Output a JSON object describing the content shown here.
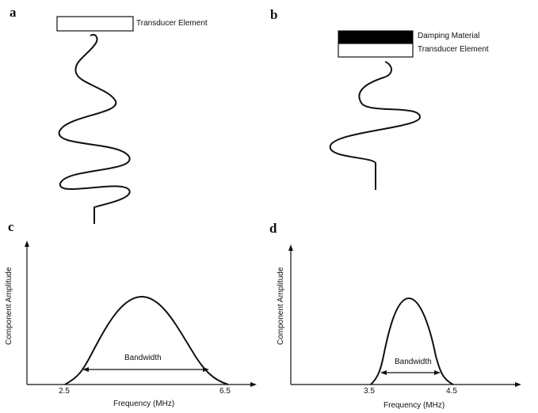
{
  "panels": {
    "a": {
      "letter": "a",
      "transducer_label": "Transducer Element"
    },
    "b": {
      "letter": "b",
      "damping_label": "Damping Material",
      "transducer_label": "Transducer Element"
    },
    "c": {
      "letter": "c",
      "ylabel": "Component Amplitude",
      "xlabel": "Frequency (MHz)",
      "bandwidth_label": "Bandwidth",
      "tick_low": "2.5",
      "tick_high": "6.5"
    },
    "d": {
      "letter": "d",
      "ylabel": "Component Amplitude",
      "xlabel": "Frequency (MHz)",
      "bandwidth_label": "Bandwidth",
      "tick_low": "3.5",
      "tick_high": "4.5"
    }
  },
  "colors": {
    "line": "#111111",
    "damping_fill": "#000000",
    "background": "#ffffff"
  }
}
